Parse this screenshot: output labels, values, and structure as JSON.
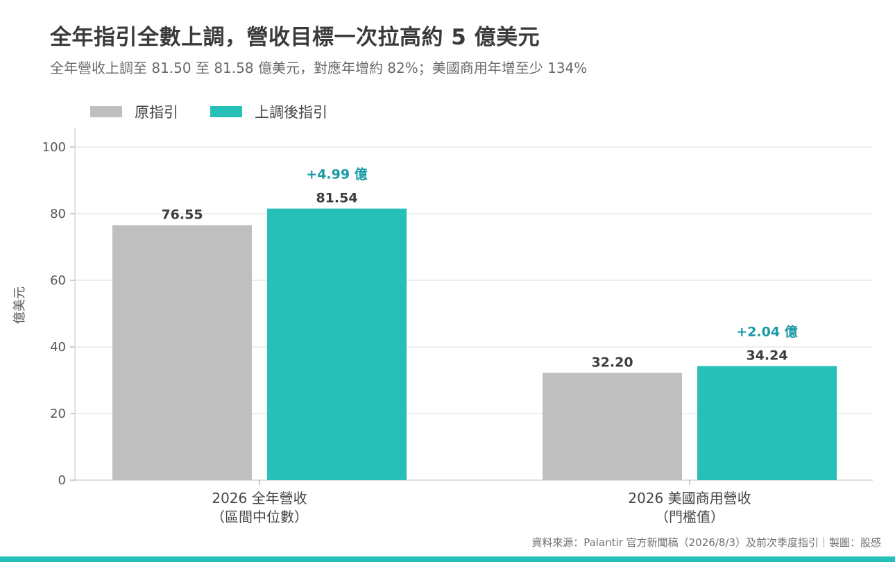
{
  "colors": {
    "original": "#bfbfbf",
    "raised": "#26c0b8",
    "annotation": "#1a9aa5",
    "bottom_bar": "#26c0b8"
  },
  "chart_data": {
    "type": "bar",
    "title": "全年指引全數上調，營收目標一次拉高約 5 億美元",
    "subtitle": "全年營收上調至 81.50 至 81.58 億美元，對應年增約 82%；美國商用年增至少 134%",
    "ylabel": "億美元",
    "xlabel": "",
    "ylim": [
      0,
      100
    ],
    "yticks": [
      0,
      20,
      40,
      60,
      80,
      100
    ],
    "grid": true,
    "legend_placement": "top-left",
    "categories": [
      [
        "2026 全年營收",
        "（區間中位數）"
      ],
      [
        "2026 美國商用營收",
        "（門檻值）"
      ]
    ],
    "series": [
      {
        "name": "原指引",
        "values": [
          76.55,
          32.2
        ],
        "labels": [
          "76.55",
          "32.20"
        ]
      },
      {
        "name": "上調後指引",
        "values": [
          81.54,
          34.24
        ],
        "labels": [
          "81.54",
          "34.24"
        ]
      }
    ],
    "annotations": [
      "+4.99 億",
      "+2.04 億"
    ]
  },
  "footer": {
    "source": "資料來源：Palantir 官方新聞稿（2026/8/3）及前次季度指引｜製圖：股感"
  }
}
